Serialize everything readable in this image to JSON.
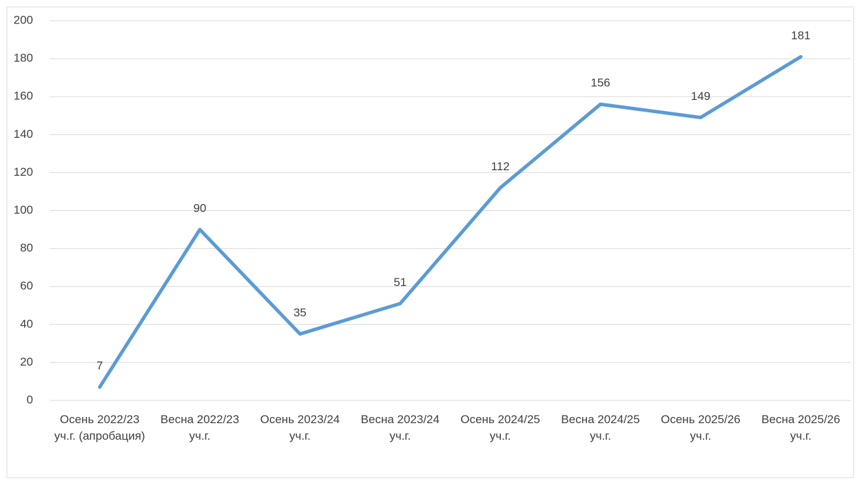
{
  "chart_data": {
    "type": "line",
    "categories": [
      "Осень 2022/23 уч.г. (апробация)",
      "Весна 2022/23 уч.г.",
      "Осень 2023/24 уч.г.",
      "Весна 2023/24 уч.г.",
      "Осень 2024/25 уч.г.",
      "Весна 2024/25 уч.г.",
      "Осень 2025/26 уч.г.",
      "Весна 2025/26 уч.г."
    ],
    "values": [
      7,
      90,
      35,
      51,
      112,
      156,
      149,
      181
    ],
    "color": "#5b9bd5",
    "ylim": [
      0,
      200
    ],
    "yticks": [
      0,
      20,
      40,
      60,
      80,
      100,
      120,
      140,
      160,
      180,
      200
    ],
    "grid": true,
    "data_labels": true
  }
}
